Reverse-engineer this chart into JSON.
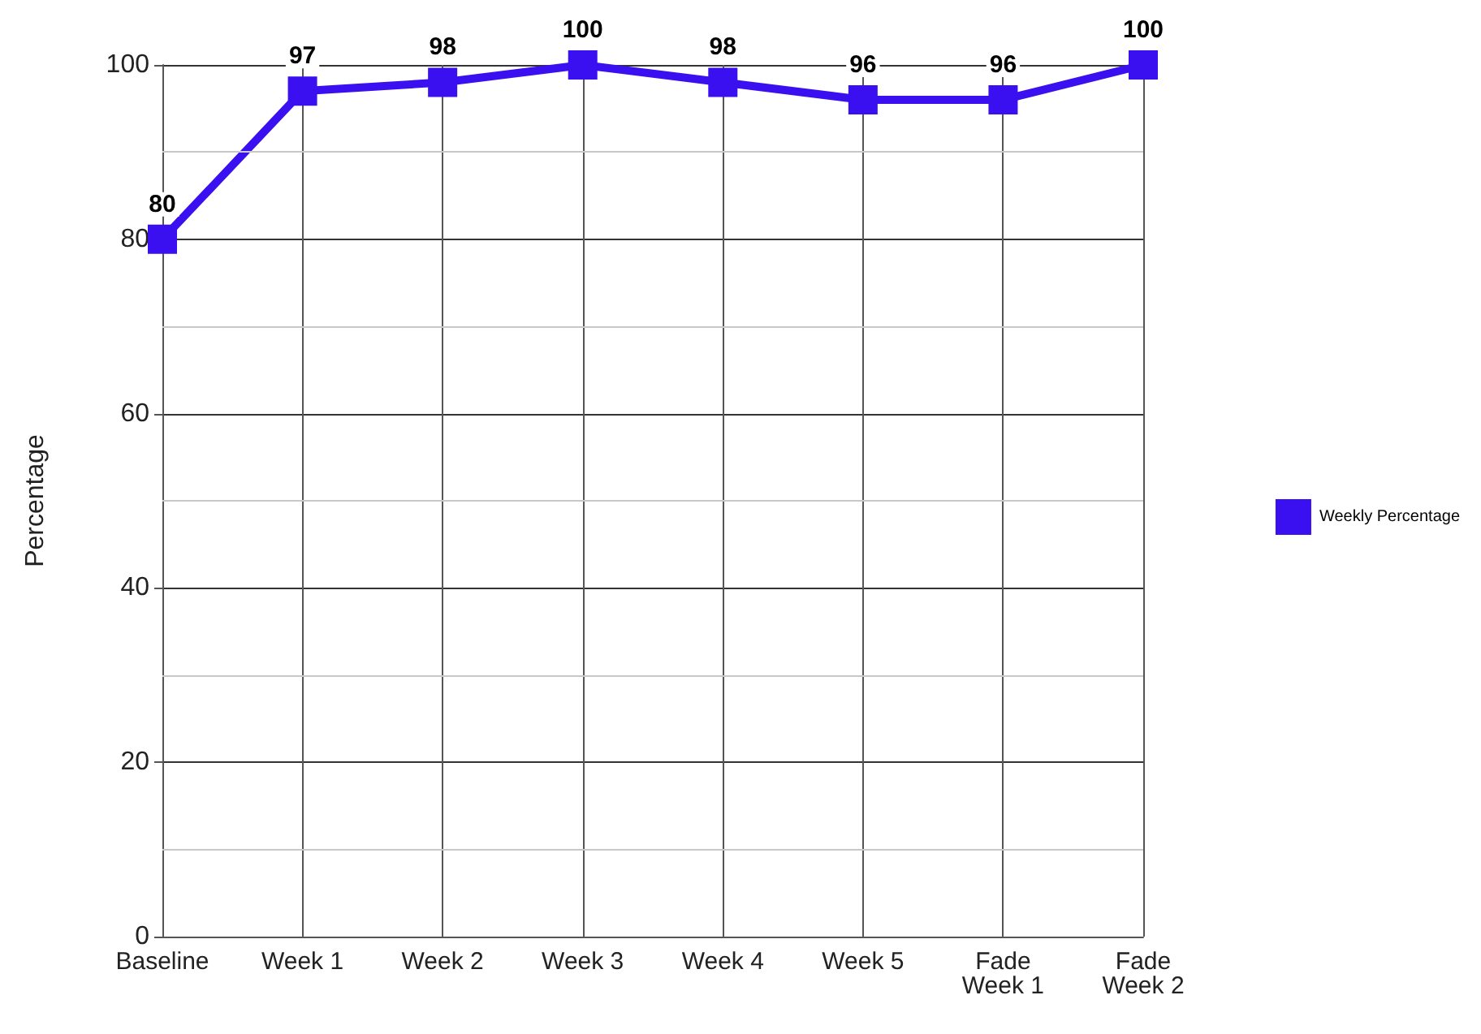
{
  "chart_data": {
    "type": "line",
    "ylabel": "Percentage",
    "categories": [
      "Baseline",
      "Week 1",
      "Week 2",
      "Week 3",
      "Week 4",
      "Week 5",
      "Fade Week 1",
      "Fade Week 2"
    ],
    "series": [
      {
        "name": "Weekly Percentage",
        "color": "#3a10f0",
        "values": [
          80,
          97,
          98,
          100,
          98,
          96,
          96,
          100
        ]
      }
    ],
    "ylim": [
      0,
      100
    ],
    "yticks": [
      0,
      {
        "value": 10,
        "label": null
      },
      20,
      {
        "value": 30,
        "label": null
      },
      40,
      {
        "value": 50,
        "label": null
      },
      60,
      {
        "value": 70,
        "label": null
      },
      80,
      {
        "value": 90,
        "label": null
      },
      100
    ],
    "grid": true,
    "legend": "right",
    "marker": "square",
    "line_style": "solid",
    "data_labels": true
  }
}
